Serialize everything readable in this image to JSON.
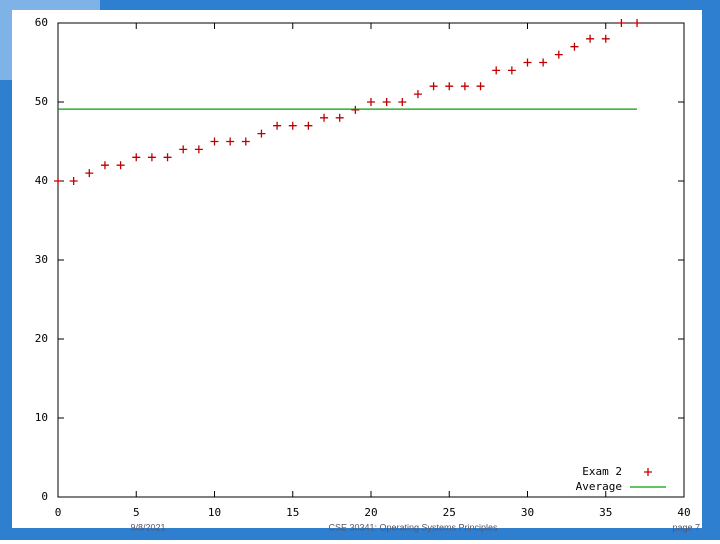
{
  "chart_data": {
    "type": "scatter",
    "xlim": [
      0,
      40
    ],
    "xticks": [
      0,
      5,
      10,
      15,
      20,
      25,
      30,
      35,
      40
    ],
    "ylim": [
      0,
      60
    ],
    "yticks": [
      0,
      10,
      20,
      30,
      40,
      50,
      60
    ],
    "legend": "lower right",
    "series": [
      {
        "name": "Exam 2",
        "color": "#c00000",
        "style": "points",
        "x": [
          0,
          1,
          2,
          3,
          4,
          5,
          6,
          7,
          8,
          9,
          10,
          11,
          12,
          13,
          14,
          15,
          16,
          17,
          18,
          19,
          20,
          21,
          22,
          23,
          24,
          25,
          26,
          27,
          28,
          29,
          30,
          31,
          32,
          33,
          34,
          35,
          36,
          37
        ],
        "values": [
          40,
          40,
          41,
          42,
          42,
          43,
          43,
          43,
          44,
          44,
          45,
          45,
          45,
          46,
          47,
          47,
          47,
          48,
          48,
          49,
          50,
          50,
          50,
          51,
          52,
          52,
          52,
          52,
          54,
          54,
          55,
          55,
          56,
          57,
          58,
          58,
          60,
          60
        ]
      },
      {
        "name": "Average",
        "color": "#00a000",
        "style": "line",
        "x": [
          0,
          37
        ],
        "values": [
          49.1,
          49.1
        ]
      }
    ]
  },
  "footer": {
    "date": "9/8/2021",
    "course": "CSE 30341: Operating Systems Principles",
    "page": "page 7"
  }
}
